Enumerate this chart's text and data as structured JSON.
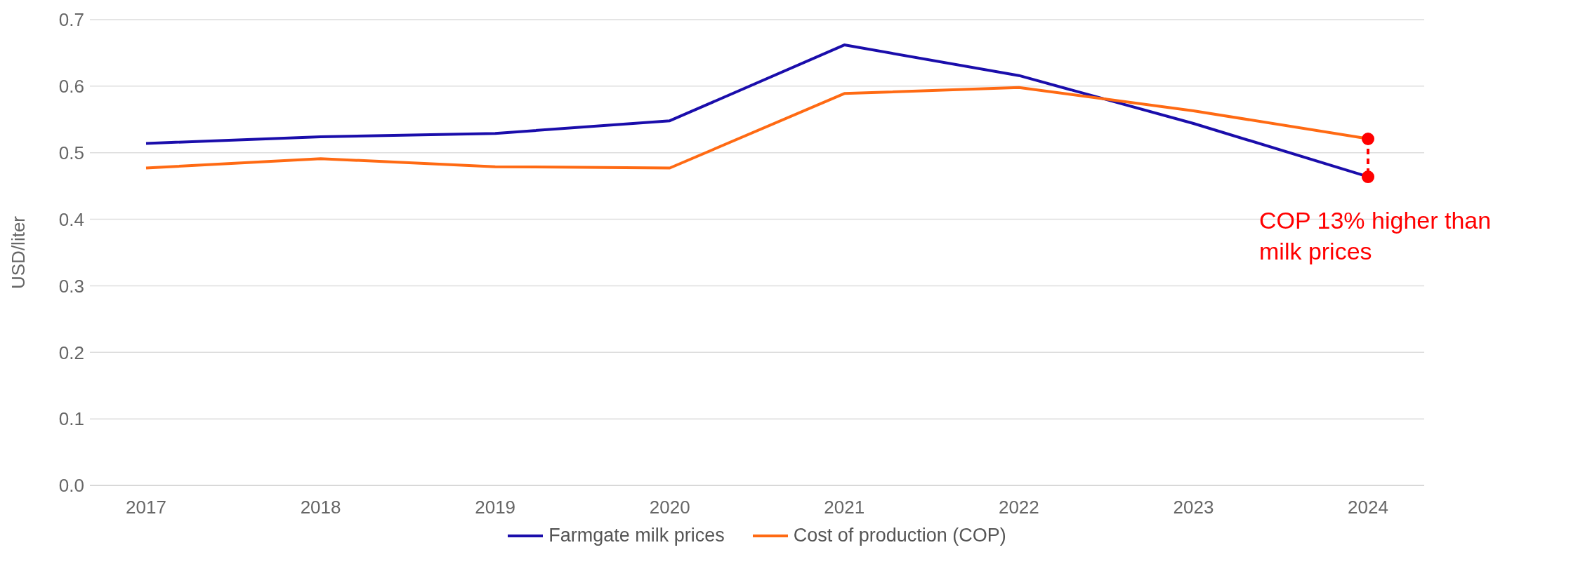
{
  "chart_data": {
    "type": "line",
    "ylabel": "USD/liter",
    "categories": [
      "2017",
      "2018",
      "2019",
      "2020",
      "2021",
      "2022",
      "2023",
      "2024"
    ],
    "series": [
      {
        "name": "Farmgate milk prices",
        "color": "#1a0dab",
        "values": [
          0.514,
          0.524,
          0.529,
          0.548,
          0.662,
          0.616,
          0.544,
          0.464
        ]
      },
      {
        "name": "Cost of production (COP)",
        "color": "#ff6a13",
        "values": [
          0.477,
          0.491,
          0.479,
          0.477,
          0.589,
          0.598,
          0.563,
          0.521
        ]
      }
    ],
    "ylim": [
      0,
      0.7
    ],
    "yticks": [
      {
        "value": 0,
        "label": "0.0"
      },
      0.1,
      0.2,
      0.3,
      0.4,
      0.5,
      0.6,
      0.7
    ],
    "grid": "y",
    "legend": "bottom",
    "marker": "none",
    "line_style": "solid",
    "annotations": [
      {
        "text": "COP 13% higher than milk prices",
        "x": "2024",
        "y": 0.464
      }
    ]
  }
}
